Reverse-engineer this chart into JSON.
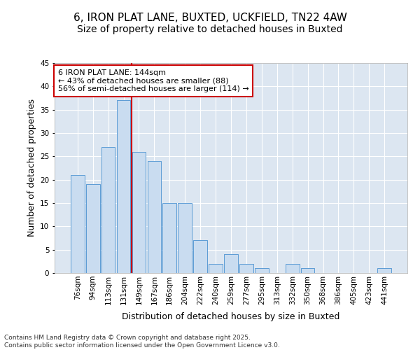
{
  "title_line1": "6, IRON PLAT LANE, BUXTED, UCKFIELD, TN22 4AW",
  "title_line2": "Size of property relative to detached houses in Buxted",
  "xlabel": "Distribution of detached houses by size in Buxted",
  "ylabel": "Number of detached properties",
  "categories": [
    "76sqm",
    "94sqm",
    "113sqm",
    "131sqm",
    "149sqm",
    "167sqm",
    "186sqm",
    "204sqm",
    "222sqm",
    "240sqm",
    "259sqm",
    "277sqm",
    "295sqm",
    "313sqm",
    "332sqm",
    "350sqm",
    "368sqm",
    "386sqm",
    "405sqm",
    "423sqm",
    "441sqm"
  ],
  "values": [
    21,
    19,
    27,
    37,
    26,
    24,
    15,
    15,
    7,
    2,
    4,
    2,
    1,
    0,
    2,
    1,
    0,
    0,
    0,
    0,
    1
  ],
  "bar_color": "#c9dcf0",
  "bar_edge_color": "#5b9bd5",
  "background_color": "#dce6f1",
  "grid_color": "#ffffff",
  "fig_background": "#ffffff",
  "vline_x_index": 3,
  "vline_color": "#cc0000",
  "annotation_text": "6 IRON PLAT LANE: 144sqm\n← 43% of detached houses are smaller (88)\n56% of semi-detached houses are larger (114) →",
  "annotation_box_facecolor": "#ffffff",
  "annotation_box_edgecolor": "#cc0000",
  "ylim": [
    0,
    45
  ],
  "yticks": [
    0,
    5,
    10,
    15,
    20,
    25,
    30,
    35,
    40,
    45
  ],
  "footer_text": "Contains HM Land Registry data © Crown copyright and database right 2025.\nContains public sector information licensed under the Open Government Licence v3.0.",
  "title_fontsize": 11,
  "subtitle_fontsize": 10,
  "axis_label_fontsize": 9,
  "tick_fontsize": 7.5,
  "annotation_fontsize": 8,
  "footer_fontsize": 6.5
}
